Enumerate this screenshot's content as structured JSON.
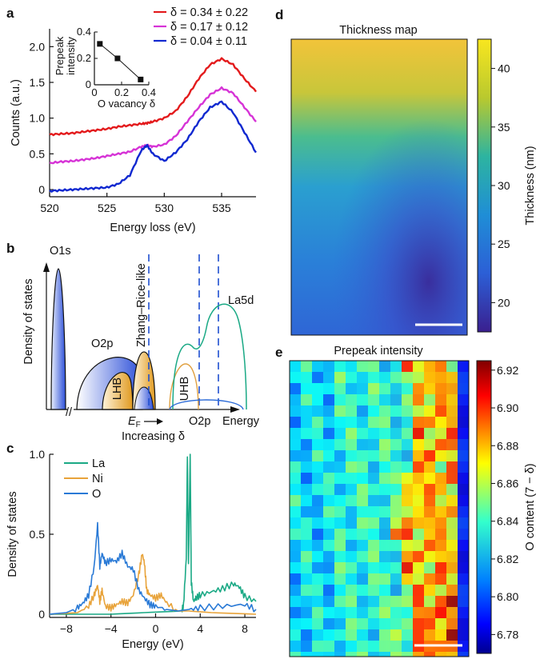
{
  "panels": {
    "a": "a",
    "b": "b",
    "c": "c",
    "d": "d",
    "e": "e"
  },
  "colors": {
    "red": "#e31a1c",
    "magenta": "#d633d6",
    "blue": "#1028d0",
    "la": "#1aa985",
    "ni": "#e8a33a",
    "o": "#2a7ad6",
    "lhb_fill": "#e8a83a",
    "o2p_fill": "#2b4ed8"
  },
  "panel_a": {
    "chart_data": {
      "type": "line",
      "xlabel": "Energy loss (eV)",
      "ylabel": "Counts (a.u.)",
      "xlim": [
        520,
        538
      ],
      "ylim": [
        -0.1,
        2.25
      ],
      "x_ticks": [
        "520",
        "525",
        "530",
        "535"
      ],
      "y_ticks": [
        "0",
        "0.5",
        "1.0",
        "1.5",
        "2.0"
      ],
      "series": [
        {
          "name": "δ = 0.34 ± 0.22",
          "color": "#e31a1c",
          "x": [
            520,
            521,
            522,
            523,
            524,
            525,
            526,
            527,
            528,
            528.5,
            529,
            530,
            531,
            532,
            533,
            534,
            535,
            536,
            537,
            538
          ],
          "y": [
            0.77,
            0.78,
            0.79,
            0.81,
            0.83,
            0.85,
            0.88,
            0.9,
            0.92,
            0.93,
            0.95,
            1.0,
            1.1,
            1.3,
            1.55,
            1.75,
            1.83,
            1.75,
            1.55,
            1.37
          ]
        },
        {
          "name": "δ = 0.17 ± 0.12",
          "color": "#d633d6",
          "x": [
            520,
            521,
            522,
            523,
            524,
            525,
            526,
            527,
            528,
            528.5,
            529,
            530,
            531,
            532,
            533,
            534,
            535,
            536,
            537,
            538
          ],
          "y": [
            0.37,
            0.39,
            0.4,
            0.42,
            0.44,
            0.47,
            0.5,
            0.53,
            0.6,
            0.62,
            0.6,
            0.63,
            0.75,
            0.95,
            1.15,
            1.33,
            1.42,
            1.35,
            1.15,
            0.95
          ]
        },
        {
          "name": "δ = 0.04 ± 0.11",
          "color": "#1028d0",
          "x": [
            520,
            521,
            522,
            523,
            524,
            525,
            526,
            527,
            528,
            528.5,
            529,
            530,
            531,
            532,
            533,
            534,
            535,
            536,
            537,
            538
          ],
          "y": [
            -0.02,
            -0.01,
            0.0,
            0.01,
            0.02,
            0.03,
            0.08,
            0.2,
            0.55,
            0.62,
            0.5,
            0.4,
            0.52,
            0.7,
            0.95,
            1.15,
            1.23,
            1.08,
            0.8,
            0.52
          ]
        }
      ],
      "legend": [
        "δ = 0.34 ± 0.22",
        "δ = 0.17 ± 0.12",
        "δ = 0.04 ± 0.11"
      ]
    },
    "inset": {
      "chart_data": {
        "type": "line",
        "xlabel": "O vacancy δ",
        "ylabel_line1": "Prepeak",
        "ylabel_line2": "intensity",
        "xlim": [
          0,
          0.4
        ],
        "ylim": [
          0,
          0.4
        ],
        "x_ticks": [
          "0",
          "0.2",
          "0.4"
        ],
        "y_ticks": [
          "0",
          "0.2",
          "0.4"
        ],
        "x": [
          0.04,
          0.17,
          0.34
        ],
        "y": [
          0.31,
          0.2,
          0.04
        ]
      }
    }
  },
  "panel_b": {
    "ylabel": "Density of states",
    "xlabel": "Energy",
    "o1s": "O1s",
    "o2p": "O2p",
    "lhb": "LHB",
    "uhb": "UHB",
    "zhang_rice": "Zhang–Rice-like",
    "la5d": "La5d",
    "ef": "EF",
    "o2p_bottom": "O2p",
    "increasing": "Increasing δ",
    "break_mark": "//"
  },
  "panel_c": {
    "chart_data": {
      "type": "line",
      "xlabel": "Energy (eV)",
      "ylabel": "Density of states",
      "xlim": [
        -9.5,
        9
      ],
      "ylim": [
        -0.02,
        1.0
      ],
      "x_ticks": [
        "−8",
        "−4",
        "0",
        "4",
        "8"
      ],
      "y_ticks": [
        "0",
        "0.5",
        "1.0"
      ],
      "series": [
        {
          "name": "La",
          "color": "#1aa985",
          "x": [
            -9.5,
            -4,
            -1,
            2.3,
            2.5,
            2.75,
            2.85,
            2.95,
            3.1,
            3.2,
            3.4,
            3.6,
            4,
            5,
            6,
            7,
            7.5,
            8,
            9
          ],
          "y": [
            0.0,
            0.0,
            0.01,
            0.02,
            0.05,
            0.35,
            1.0,
            0.3,
            1.0,
            0.2,
            0.08,
            0.1,
            0.12,
            0.14,
            0.16,
            0.19,
            0.17,
            0.11,
            0.08
          ]
        },
        {
          "name": "Ni",
          "color": "#e8a33a",
          "x": [
            -9.5,
            -7,
            -6,
            -5.5,
            -5.2,
            -5.0,
            -4.8,
            -4.5,
            -4,
            -3.5,
            -3,
            -2.5,
            -2,
            -1.5,
            -1.2,
            -1.0,
            -0.8,
            -0.5,
            0,
            0.5,
            1,
            2,
            3,
            5,
            9
          ],
          "y": [
            0.0,
            0.01,
            0.05,
            0.12,
            0.18,
            0.08,
            0.15,
            0.05,
            0.04,
            0.06,
            0.08,
            0.07,
            0.12,
            0.25,
            0.38,
            0.32,
            0.15,
            0.12,
            0.1,
            0.12,
            0.07,
            0.02,
            0.02,
            0.01,
            0.0
          ]
        },
        {
          "name": "O",
          "color": "#2a7ad6",
          "x": [
            -9.5,
            -8,
            -7,
            -6.5,
            -6,
            -5.5,
            -5.2,
            -5.0,
            -4.8,
            -4.5,
            -4,
            -3.5,
            -3,
            -2.5,
            -2,
            -1.5,
            -1,
            -0.5,
            0,
            1,
            2,
            3,
            4,
            6,
            8,
            9
          ],
          "y": [
            0.0,
            0.01,
            0.04,
            0.07,
            0.12,
            0.3,
            0.56,
            0.3,
            0.38,
            0.32,
            0.34,
            0.33,
            0.38,
            0.3,
            0.28,
            0.15,
            0.1,
            0.06,
            0.05,
            0.03,
            0.02,
            0.03,
            0.04,
            0.05,
            0.06,
            0.03
          ]
        }
      ],
      "legend": [
        "La",
        "Ni",
        "O"
      ]
    }
  },
  "panel_d": {
    "title": "Thickness map",
    "colorbar_label": "Thickness (nm)",
    "colorbar_ticks": [
      "40",
      "35",
      "30",
      "25",
      "20"
    ],
    "range": [
      17.5,
      42.5
    ]
  },
  "panel_e": {
    "title": "Prepeak intensity",
    "colorbar_label": "O content (7 − δ)",
    "colorbar_ticks": [
      "6.92",
      "6.90",
      "6.88",
      "6.86",
      "6.84",
      "6.82",
      "6.80",
      "6.78"
    ],
    "range": [
      6.77,
      6.925
    ]
  }
}
